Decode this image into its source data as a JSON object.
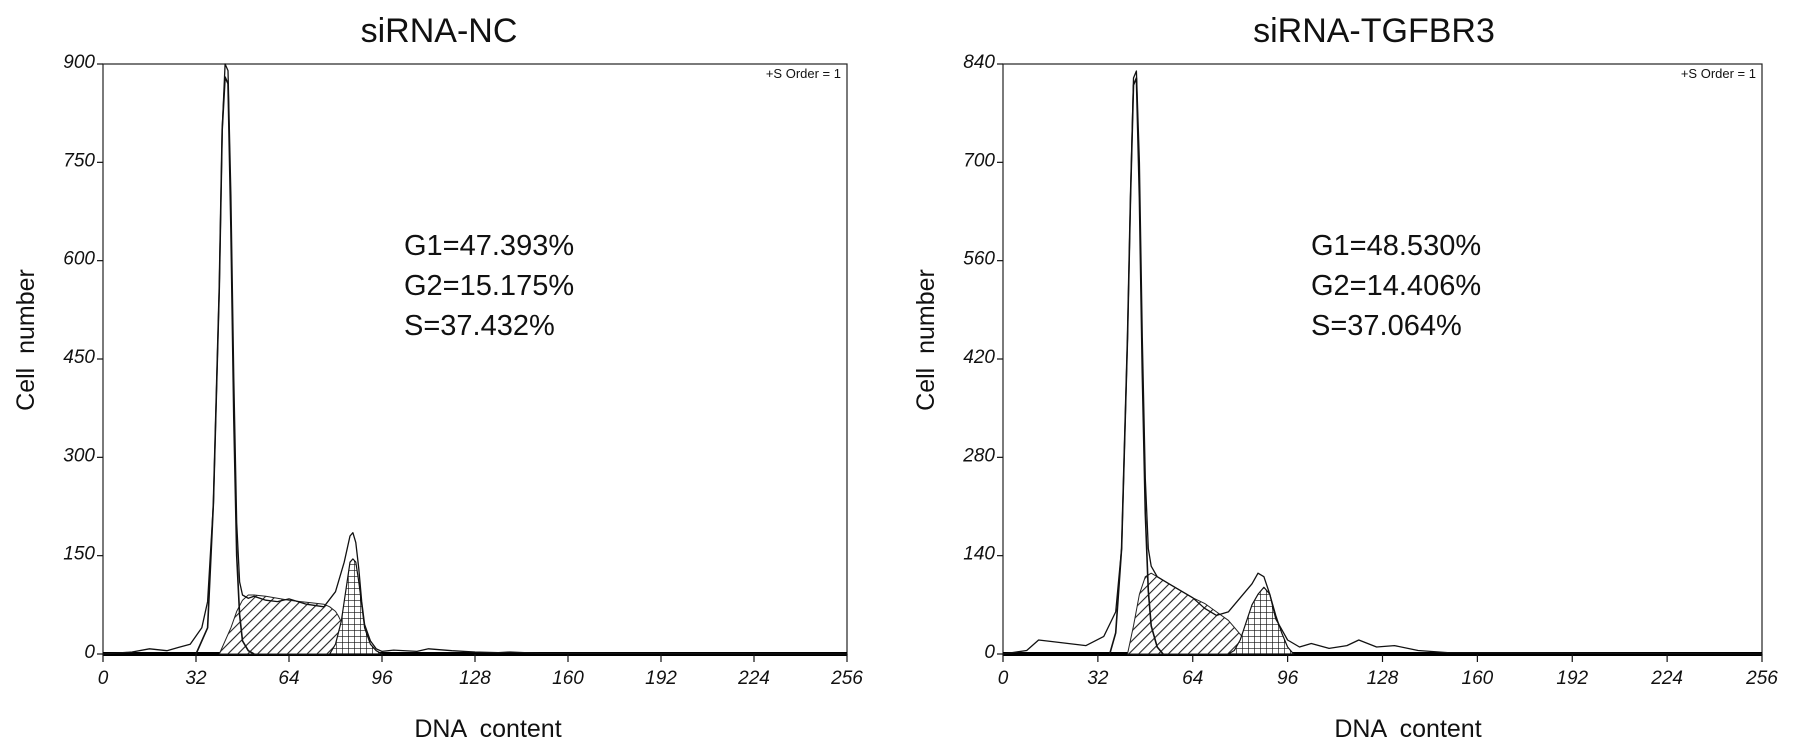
{
  "chart_data": [
    {
      "type": "area",
      "title": "siRNA-NC",
      "xlabel": "DNA  content",
      "ylabel": "Cell  number",
      "corner_note": "+S Order = 1",
      "xlim": [
        0,
        256
      ],
      "ylim": [
        0,
        900
      ],
      "x_ticks": [
        0,
        32,
        64,
        96,
        128,
        160,
        192,
        224,
        256
      ],
      "y_ticks": [
        0,
        150,
        300,
        450,
        600,
        750,
        900
      ],
      "stats": [
        "G1=47.393%",
        "G2=15.175%",
        "S=37.432%"
      ],
      "series": [
        {
          "kind": "histogram",
          "style": "line",
          "x": [
            0,
            10,
            16,
            22,
            26,
            30,
            34,
            36,
            38,
            40,
            41,
            42,
            43,
            44,
            45,
            46,
            47,
            48,
            50,
            52,
            56,
            60,
            64,
            70,
            76,
            80,
            83,
            85,
            86,
            87,
            88,
            89,
            90,
            92,
            94,
            96,
            100,
            108,
            112,
            120,
            128,
            136,
            140,
            150,
            256
          ],
          "y": [
            0,
            3,
            8,
            5,
            10,
            15,
            40,
            80,
            230,
            560,
            800,
            900,
            890,
            700,
            420,
            200,
            110,
            90,
            85,
            88,
            82,
            80,
            84,
            76,
            72,
            95,
            140,
            180,
            185,
            170,
            130,
            80,
            45,
            20,
            8,
            4,
            6,
            4,
            8,
            5,
            3,
            2,
            3,
            1,
            0
          ]
        },
        {
          "kind": "g1-fit",
          "style": "line",
          "x": [
            32,
            36,
            38,
            40,
            41,
            42,
            43,
            44,
            45,
            46,
            47,
            48,
            50,
            52
          ],
          "y": [
            0,
            40,
            230,
            560,
            800,
            880,
            870,
            650,
            360,
            150,
            60,
            20,
            5,
            0
          ]
        },
        {
          "kind": "s-phase",
          "style": "hatched",
          "x": [
            40,
            44,
            46,
            48,
            50,
            52,
            56,
            60,
            64,
            68,
            72,
            76,
            78,
            80,
            81,
            83,
            85,
            86,
            90,
            95
          ],
          "y": [
            0,
            40,
            65,
            82,
            90,
            90,
            88,
            85,
            82,
            80,
            78,
            76,
            72,
            65,
            58,
            40,
            25,
            15,
            5,
            0
          ]
        },
        {
          "kind": "g2-fit",
          "style": "crosshatched",
          "x": [
            78,
            80,
            82,
            84,
            85,
            86,
            87,
            88,
            89,
            90,
            92,
            94,
            96
          ],
          "y": [
            0,
            15,
            50,
            110,
            140,
            145,
            140,
            110,
            75,
            40,
            15,
            5,
            0
          ]
        }
      ]
    },
    {
      "type": "area",
      "title": "siRNA-TGFBR3",
      "xlabel": "DNA  content",
      "ylabel": "Cell  number",
      "corner_note": "+S Order = 1",
      "xlim": [
        0,
        256
      ],
      "ylim": [
        0,
        840
      ],
      "x_ticks": [
        0,
        32,
        64,
        96,
        128,
        160,
        192,
        224,
        256
      ],
      "y_ticks": [
        0,
        140,
        280,
        420,
        560,
        700,
        840
      ],
      "stats": [
        "G1=48.530%",
        "G2=14.406%",
        "S=37.064%"
      ],
      "series": [
        {
          "kind": "histogram",
          "style": "line",
          "x": [
            0,
            8,
            12,
            16,
            22,
            28,
            34,
            38,
            40,
            42,
            43,
            44,
            45,
            46,
            47,
            48,
            49,
            50,
            52,
            56,
            60,
            64,
            68,
            72,
            76,
            80,
            84,
            86,
            88,
            90,
            92,
            96,
            100,
            104,
            110,
            116,
            120,
            126,
            132,
            140,
            150,
            256
          ],
          "y": [
            0,
            5,
            20,
            18,
            15,
            12,
            25,
            60,
            150,
            450,
            650,
            820,
            830,
            700,
            450,
            250,
            150,
            125,
            110,
            100,
            90,
            80,
            65,
            55,
            60,
            80,
            100,
            115,
            110,
            85,
            50,
            20,
            10,
            15,
            8,
            12,
            20,
            10,
            12,
            5,
            2,
            0
          ]
        },
        {
          "kind": "g1-fit",
          "style": "line",
          "x": [
            36,
            38,
            40,
            42,
            43,
            44,
            45,
            46,
            47,
            48,
            49,
            50,
            52,
            54
          ],
          "y": [
            0,
            30,
            150,
            450,
            650,
            810,
            820,
            650,
            400,
            200,
            90,
            40,
            10,
            0
          ]
        },
        {
          "kind": "s-phase",
          "style": "hatched",
          "x": [
            42,
            44,
            46,
            48,
            50,
            52,
            54,
            56,
            60,
            64,
            68,
            72,
            76,
            78,
            80,
            82,
            85,
            88,
            92,
            96
          ],
          "y": [
            0,
            40,
            85,
            110,
            115,
            110,
            105,
            100,
            90,
            80,
            72,
            60,
            48,
            38,
            28,
            18,
            10,
            5,
            2,
            0
          ]
        },
        {
          "kind": "g2-fit",
          "style": "crosshatched",
          "x": [
            76,
            78,
            80,
            82,
            84,
            86,
            88,
            90,
            92,
            94,
            96,
            98
          ],
          "y": [
            0,
            5,
            20,
            45,
            70,
            85,
            95,
            85,
            55,
            30,
            10,
            0
          ]
        }
      ]
    }
  ]
}
